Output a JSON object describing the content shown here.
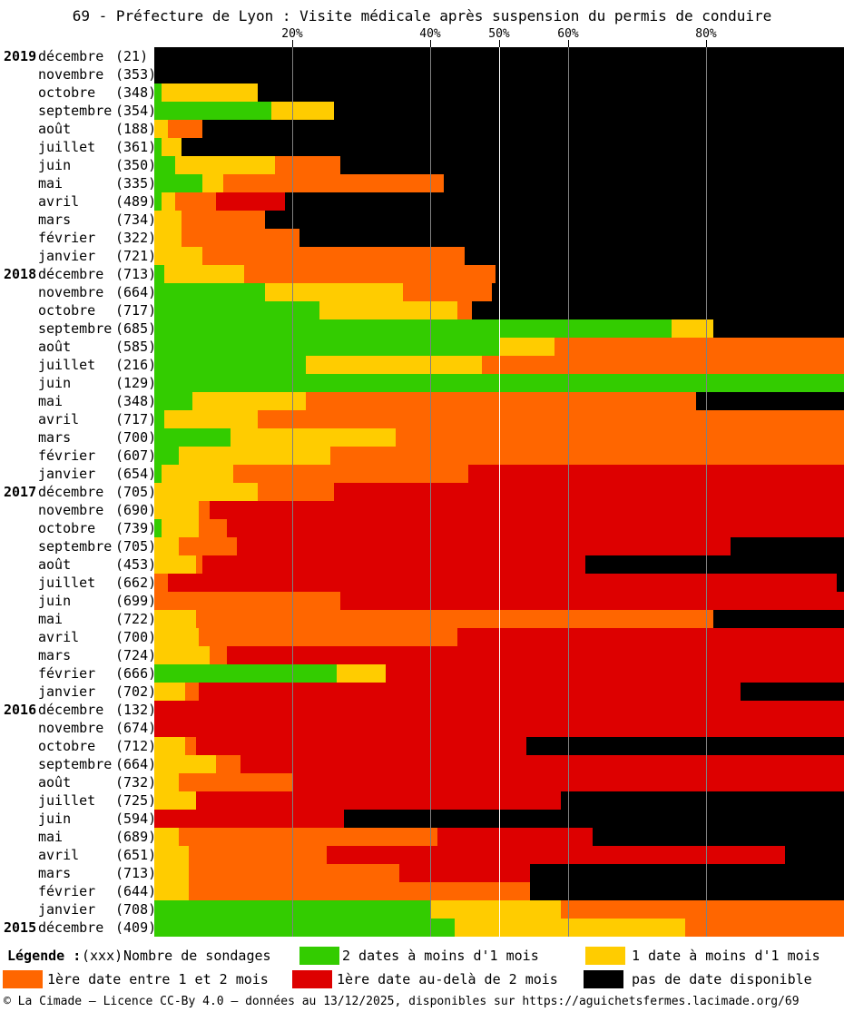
{
  "title": "69 - Préfecture de Lyon : Visite médicale après suspension du permis de conduire",
  "colors": {
    "green": "#33cc00",
    "yellow": "#ffcc00",
    "orange": "#ff6600",
    "red": "#dd0000",
    "black": "#000000",
    "gridline": "#808080",
    "gridline_50": "#ffffff"
  },
  "legend": {
    "heading": "Légende :",
    "count_key": "(xxx)",
    "count_label": "Nombre de sondages",
    "items": [
      {
        "key": "green",
        "label": "2 dates à moins d'1 mois"
      },
      {
        "key": "yellow",
        "label": "1 date à moins d'1 mois"
      },
      {
        "key": "orange",
        "label": "1ère date entre 1 et 2 mois"
      },
      {
        "key": "red",
        "label": "1ère date au-delà de 2 mois"
      },
      {
        "key": "black",
        "label": "pas de date disponible"
      }
    ]
  },
  "footer": "© La Cimade – Licence CC-By 4.0 – données au 13/12/2025, disponibles sur https://aguichetsfermes.lacimade.org/69",
  "chart_data": {
    "type": "bar",
    "orientation": "horizontal-stacked",
    "unit": "percent",
    "xlim": [
      0,
      100
    ],
    "x_ticks": [
      {
        "label": "20%",
        "pct": 20
      },
      {
        "label": "40%",
        "pct": 40
      },
      {
        "label": "50%",
        "pct": 50
      },
      {
        "label": "60%",
        "pct": 60
      },
      {
        "label": "80%",
        "pct": 80
      }
    ],
    "series": [
      {
        "key": "green",
        "name": "2 dates à moins d'1 mois"
      },
      {
        "key": "yellow",
        "name": "1 date à moins d'1 mois"
      },
      {
        "key": "orange",
        "name": "1ère date entre 1 et 2 mois"
      },
      {
        "key": "red",
        "name": "1ère date au-delà de 2 mois"
      },
      {
        "key": "black",
        "name": "pas de date disponible"
      }
    ],
    "rows": [
      {
        "year": "2019",
        "month": "décembre",
        "count": 21,
        "green": 0,
        "yellow": 0,
        "orange": 0,
        "red": 0,
        "black": 100
      },
      {
        "year": "",
        "month": "novembre",
        "count": 353,
        "green": 0,
        "yellow": 0,
        "orange": 0,
        "red": 0,
        "black": 100
      },
      {
        "year": "",
        "month": "octobre",
        "count": 348,
        "green": 1,
        "yellow": 14,
        "orange": 0,
        "red": 0,
        "black": 85
      },
      {
        "year": "",
        "month": "septembre",
        "count": 354,
        "green": 17,
        "yellow": 9,
        "orange": 0,
        "red": 0,
        "black": 74
      },
      {
        "year": "",
        "month": "août",
        "count": 188,
        "green": 0,
        "yellow": 2,
        "orange": 5,
        "red": 0,
        "black": 93
      },
      {
        "year": "",
        "month": "juillet",
        "count": 361,
        "green": 1,
        "yellow": 3,
        "orange": 0,
        "red": 0,
        "black": 96
      },
      {
        "year": "",
        "month": "juin",
        "count": 350,
        "green": 3,
        "yellow": 14.5,
        "orange": 9.5,
        "red": 0,
        "black": 73
      },
      {
        "year": "",
        "month": "mai",
        "count": 335,
        "green": 7,
        "yellow": 3,
        "orange": 32,
        "red": 0,
        "black": 58
      },
      {
        "year": "",
        "month": "avril",
        "count": 489,
        "green": 1,
        "yellow": 2,
        "orange": 6,
        "red": 10,
        "black": 81
      },
      {
        "year": "",
        "month": "mars",
        "count": 734,
        "green": 0,
        "yellow": 4,
        "orange": 12,
        "red": 0,
        "black": 84
      },
      {
        "year": "",
        "month": "février",
        "count": 322,
        "green": 0,
        "yellow": 4,
        "orange": 17,
        "red": 0,
        "black": 79
      },
      {
        "year": "",
        "month": "janvier",
        "count": 721,
        "green": 0,
        "yellow": 7,
        "orange": 38,
        "red": 0,
        "black": 55
      },
      {
        "year": "2018",
        "month": "décembre",
        "count": 713,
        "green": 1.5,
        "yellow": 11.5,
        "orange": 36.5,
        "red": 0,
        "black": 50.5
      },
      {
        "year": "",
        "month": "novembre",
        "count": 664,
        "green": 16,
        "yellow": 20,
        "orange": 13,
        "red": 0,
        "black": 51
      },
      {
        "year": "",
        "month": "octobre",
        "count": 717,
        "green": 24,
        "yellow": 20,
        "orange": 2,
        "red": 0,
        "black": 54
      },
      {
        "year": "",
        "month": "septembre",
        "count": 685,
        "green": 75,
        "yellow": 6,
        "orange": 0,
        "red": 0,
        "black": 19
      },
      {
        "year": "",
        "month": "août",
        "count": 585,
        "green": 50,
        "yellow": 8,
        "orange": 42,
        "red": 0,
        "black": 0
      },
      {
        "year": "",
        "month": "juillet",
        "count": 216,
        "green": 22,
        "yellow": 25.5,
        "orange": 52.5,
        "red": 0,
        "black": 0
      },
      {
        "year": "",
        "month": "juin",
        "count": 129,
        "green": 100,
        "yellow": 0,
        "orange": 0,
        "red": 0,
        "black": 0
      },
      {
        "year": "",
        "month": "mai",
        "count": 348,
        "green": 5.5,
        "yellow": 16.5,
        "orange": 56.5,
        "red": 0,
        "black": 21.5
      },
      {
        "year": "",
        "month": "avril",
        "count": 717,
        "green": 1.5,
        "yellow": 13.5,
        "orange": 85,
        "red": 0,
        "black": 0
      },
      {
        "year": "",
        "month": "mars",
        "count": 700,
        "green": 11,
        "yellow": 24,
        "orange": 65,
        "red": 0,
        "black": 0
      },
      {
        "year": "",
        "month": "février",
        "count": 607,
        "green": 3.5,
        "yellow": 22,
        "orange": 74.5,
        "red": 0,
        "black": 0
      },
      {
        "year": "",
        "month": "janvier",
        "count": 654,
        "green": 1,
        "yellow": 10.5,
        "orange": 34,
        "red": 54.5,
        "black": 0
      },
      {
        "year": "2017",
        "month": "décembre",
        "count": 705,
        "green": 0,
        "yellow": 15,
        "orange": 11,
        "red": 74,
        "black": 0
      },
      {
        "year": "",
        "month": "novembre",
        "count": 690,
        "green": 0,
        "yellow": 6.5,
        "orange": 1.5,
        "red": 92,
        "black": 0
      },
      {
        "year": "",
        "month": "octobre",
        "count": 739,
        "green": 1,
        "yellow": 5.5,
        "orange": 4,
        "red": 89.5,
        "black": 0
      },
      {
        "year": "",
        "month": "septembre",
        "count": 705,
        "green": 0,
        "yellow": 3.5,
        "orange": 8.5,
        "red": 71.5,
        "black": 16.5
      },
      {
        "year": "",
        "month": "août",
        "count": 453,
        "green": 0,
        "yellow": 6,
        "orange": 1,
        "red": 55.5,
        "black": 37.5
      },
      {
        "year": "",
        "month": "juillet",
        "count": 662,
        "green": 0,
        "yellow": 0,
        "orange": 2,
        "red": 97,
        "black": 1
      },
      {
        "year": "",
        "month": "juin",
        "count": 699,
        "green": 0,
        "yellow": 0,
        "orange": 27,
        "red": 73,
        "black": 0
      },
      {
        "year": "",
        "month": "mai",
        "count": 722,
        "green": 0,
        "yellow": 6,
        "orange": 75,
        "red": 0,
        "black": 19
      },
      {
        "year": "",
        "month": "avril",
        "count": 700,
        "green": 0,
        "yellow": 6.5,
        "orange": 37.5,
        "red": 56,
        "black": 0
      },
      {
        "year": "",
        "month": "mars",
        "count": 724,
        "green": 0,
        "yellow": 8,
        "orange": 2.5,
        "red": 89.5,
        "black": 0
      },
      {
        "year": "",
        "month": "février",
        "count": 666,
        "green": 26.5,
        "yellow": 7,
        "orange": 0,
        "red": 66.5,
        "black": 0
      },
      {
        "year": "",
        "month": "janvier",
        "count": 702,
        "green": 0,
        "yellow": 4.5,
        "orange": 2,
        "red": 78.5,
        "black": 15
      },
      {
        "year": "2016",
        "month": "décembre",
        "count": 132,
        "green": 0,
        "yellow": 0,
        "orange": 0,
        "red": 100,
        "black": 0
      },
      {
        "year": "",
        "month": "novembre",
        "count": 674,
        "green": 0,
        "yellow": 0,
        "orange": 0,
        "red": 100,
        "black": 0
      },
      {
        "year": "",
        "month": "octobre",
        "count": 712,
        "green": 0,
        "yellow": 4.5,
        "orange": 1.5,
        "red": 48,
        "black": 46
      },
      {
        "year": "",
        "month": "septembre",
        "count": 664,
        "green": 0,
        "yellow": 9,
        "orange": 3.5,
        "red": 87.5,
        "black": 0
      },
      {
        "year": "",
        "month": "août",
        "count": 732,
        "green": 0,
        "yellow": 3.5,
        "orange": 16.5,
        "red": 80,
        "black": 0
      },
      {
        "year": "",
        "month": "juillet",
        "count": 725,
        "green": 0,
        "yellow": 6,
        "orange": 0,
        "red": 53,
        "black": 41
      },
      {
        "year": "",
        "month": "juin",
        "count": 594,
        "green": 0,
        "yellow": 0,
        "orange": 0,
        "red": 27.5,
        "black": 72.5
      },
      {
        "year": "",
        "month": "mai",
        "count": 689,
        "green": 0,
        "yellow": 3.5,
        "orange": 37.5,
        "red": 22.5,
        "black": 36.5
      },
      {
        "year": "",
        "month": "avril",
        "count": 651,
        "green": 0,
        "yellow": 5,
        "orange": 20,
        "red": 66.5,
        "black": 8.5
      },
      {
        "year": "",
        "month": "mars",
        "count": 713,
        "green": 0,
        "yellow": 5,
        "orange": 30.5,
        "red": 19,
        "black": 45.5
      },
      {
        "year": "",
        "month": "février",
        "count": 644,
        "green": 0,
        "yellow": 5,
        "orange": 49.5,
        "red": 0,
        "black": 45.5
      },
      {
        "year": "",
        "month": "janvier",
        "count": 708,
        "green": 40,
        "yellow": 19,
        "orange": 41,
        "red": 0,
        "black": 0
      },
      {
        "year": "2015",
        "month": "décembre",
        "count": 409,
        "green": 43.5,
        "yellow": 33.5,
        "orange": 23,
        "red": 0,
        "black": 0
      }
    ]
  }
}
